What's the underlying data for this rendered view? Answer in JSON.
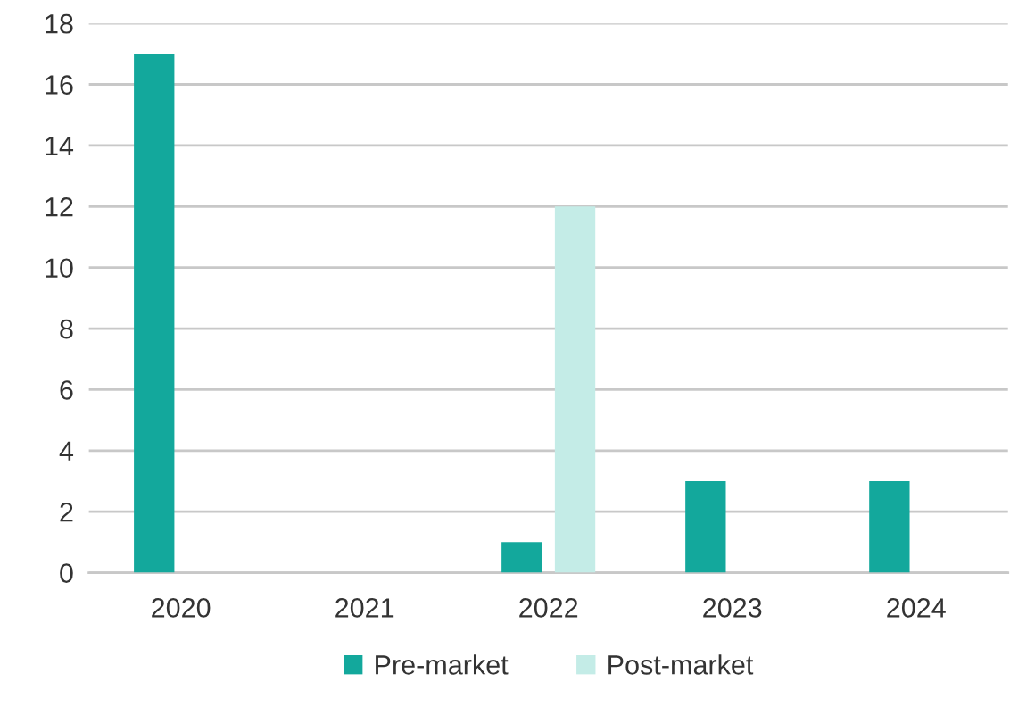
{
  "chart_data": {
    "type": "bar",
    "categories": [
      "2020",
      "2021",
      "2022",
      "2023",
      "2024"
    ],
    "series": [
      {
        "name": "Pre-market",
        "color": "#13a89c",
        "values": [
          17,
          0,
          1,
          3,
          3
        ]
      },
      {
        "name": "Post-market",
        "color": "#c4ece7",
        "values": [
          0,
          0,
          12,
          0,
          0
        ]
      }
    ],
    "ylim": [
      0,
      18
    ],
    "yticks": [
      0,
      2,
      4,
      6,
      8,
      10,
      12,
      14,
      16,
      18
    ],
    "grid": "y",
    "legend": "bottom"
  }
}
